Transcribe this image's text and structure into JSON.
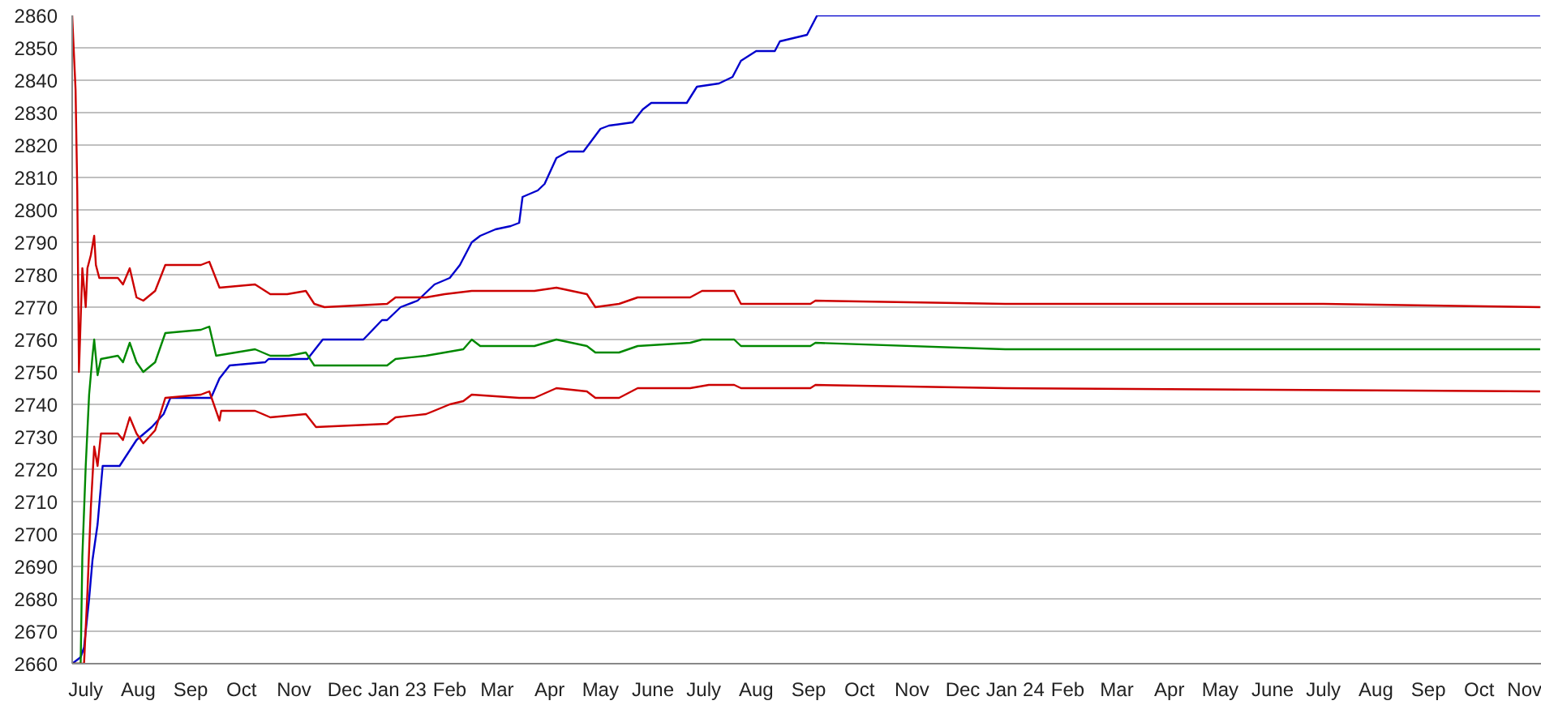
{
  "chart_data": {
    "type": "line",
    "grid": "y",
    "xlim": [
      "2022-06-23",
      "2024-11-07"
    ],
    "ylim": [
      2660,
      2860
    ],
    "yticks": [
      2660,
      2670,
      2680,
      2690,
      2700,
      2710,
      2720,
      2730,
      2740,
      2750,
      2760,
      2770,
      2780,
      2790,
      2800,
      2810,
      2820,
      2830,
      2840,
      2850,
      2860
    ],
    "xticks": [
      {
        "value": "2022-07-01",
        "label": "July"
      },
      {
        "value": "2022-08-01",
        "label": "Aug"
      },
      {
        "value": "2022-09-01",
        "label": "Sep"
      },
      {
        "value": "2022-10-01",
        "label": "Oct"
      },
      {
        "value": "2022-11-01",
        "label": "Nov"
      },
      {
        "value": "2022-12-01",
        "label": "Dec"
      },
      {
        "value": "2023-01-01",
        "label": "Jan 23"
      },
      {
        "value": "2023-02-01",
        "label": "Feb"
      },
      {
        "value": "2023-03-01",
        "label": "Mar"
      },
      {
        "value": "2023-04-01",
        "label": "Apr"
      },
      {
        "value": "2023-05-01",
        "label": "May"
      },
      {
        "value": "2023-06-01",
        "label": "June"
      },
      {
        "value": "2023-07-01",
        "label": "July"
      },
      {
        "value": "2023-08-01",
        "label": "Aug"
      },
      {
        "value": "2023-09-01",
        "label": "Sep"
      },
      {
        "value": "2023-10-01",
        "label": "Oct"
      },
      {
        "value": "2023-11-01",
        "label": "Nov"
      },
      {
        "value": "2023-12-01",
        "label": "Dec"
      },
      {
        "value": "2024-01-01",
        "label": "Jan 24"
      },
      {
        "value": "2024-02-01",
        "label": "Feb"
      },
      {
        "value": "2024-03-01",
        "label": "Mar"
      },
      {
        "value": "2024-04-01",
        "label": "Apr"
      },
      {
        "value": "2024-05-01",
        "label": "May"
      },
      {
        "value": "2024-06-01",
        "label": "June"
      },
      {
        "value": "2024-07-01",
        "label": "July"
      },
      {
        "value": "2024-08-01",
        "label": "Aug"
      },
      {
        "value": "2024-09-01",
        "label": "Sep"
      },
      {
        "value": "2024-10-01",
        "label": "Oct"
      },
      {
        "value": "2024-11-01",
        "label": "Nov"
      }
    ],
    "series": [
      {
        "color": "#0000cc",
        "x": [
          "2022-06-23",
          "2022-06-28",
          "2022-06-30",
          "2022-07-03",
          "2022-07-05",
          "2022-07-08",
          "2022-07-10",
          "2022-07-11",
          "2022-07-21",
          "2022-07-26",
          "2022-07-31",
          "2022-08-09",
          "2022-08-16",
          "2022-08-20",
          "2022-09-13",
          "2022-09-18",
          "2022-09-24",
          "2022-10-15",
          "2022-10-17",
          "2022-11-09",
          "2022-11-18",
          "2022-12-12",
          "2022-12-23",
          "2022-12-26",
          "2023-01-03",
          "2023-01-13",
          "2023-01-23",
          "2023-02-01",
          "2023-02-07",
          "2023-02-14",
          "2023-02-19",
          "2023-02-28",
          "2023-03-09",
          "2023-03-14",
          "2023-03-16",
          "2023-03-25",
          "2023-03-29",
          "2023-04-05",
          "2023-04-12",
          "2023-04-21",
          "2023-05-01",
          "2023-05-06",
          "2023-05-20",
          "2023-05-26",
          "2023-05-31",
          "2023-06-21",
          "2023-06-27",
          "2023-07-10",
          "2023-07-18",
          "2023-07-23",
          "2023-08-01",
          "2023-08-12",
          "2023-08-15",
          "2023-08-31",
          "2023-09-06",
          "2024-11-06"
        ],
        "values": [
          2660,
          2662,
          2665,
          2680,
          2692,
          2703,
          2715,
          2721,
          2721,
          2725,
          2729,
          2733,
          2737,
          2742,
          2742,
          2748,
          2752,
          2753,
          2754,
          2754,
          2760,
          2760,
          2766,
          2766,
          2770,
          2772,
          2777,
          2779,
          2783,
          2790,
          2792,
          2794,
          2795,
          2796,
          2804,
          2806,
          2808,
          2816,
          2818,
          2818,
          2825,
          2826,
          2827,
          2831,
          2833,
          2833,
          2838,
          2839,
          2841,
          2846,
          2849,
          2849,
          2852,
          2854,
          2860,
          2860
        ]
      },
      {
        "color": "#cc0000",
        "x": [
          "2022-06-23",
          "2022-06-25",
          "2022-06-26",
          "2022-06-27",
          "2022-06-29",
          "2022-07-01",
          "2022-07-02",
          "2022-07-04",
          "2022-07-06",
          "2022-07-07",
          "2022-07-09",
          "2022-07-20",
          "2022-07-23",
          "2022-07-27",
          "2022-07-31",
          "2022-08-04",
          "2022-08-11",
          "2022-08-17",
          "2022-09-07",
          "2022-09-12",
          "2022-09-18",
          "2022-10-09",
          "2022-10-18",
          "2022-10-28",
          "2022-11-08",
          "2022-11-13",
          "2022-11-19",
          "2022-12-26",
          "2022-12-31",
          "2023-01-18",
          "2023-01-29",
          "2023-02-14",
          "2023-03-14",
          "2023-03-23",
          "2023-04-05",
          "2023-04-23",
          "2023-04-28",
          "2023-05-12",
          "2023-05-23",
          "2023-06-23",
          "2023-06-30",
          "2023-07-19",
          "2023-07-23",
          "2023-09-02",
          "2023-09-05",
          "2023-12-26",
          "2024-07-01",
          "2024-11-06"
        ],
        "values": [
          2860,
          2837,
          2806,
          2750,
          2782,
          2770,
          2782,
          2786,
          2792,
          2783,
          2779,
          2779,
          2777,
          2782,
          2773,
          2772,
          2775,
          2783,
          2783,
          2784,
          2776,
          2777,
          2774,
          2774,
          2775,
          2771,
          2770,
          2771,
          2773,
          2773,
          2774,
          2775,
          2775,
          2775,
          2776,
          2774,
          2770,
          2771,
          2773,
          2773,
          2775,
          2775,
          2771,
          2771,
          2772,
          2771,
          2771,
          2770
        ]
      },
      {
        "color": "#008800",
        "x": [
          "2022-06-23",
          "2022-06-28",
          "2022-06-29",
          "2022-07-01",
          "2022-07-03",
          "2022-07-05",
          "2022-07-06",
          "2022-07-08",
          "2022-07-10",
          "2022-07-20",
          "2022-07-23",
          "2022-07-27",
          "2022-07-31",
          "2022-08-04",
          "2022-08-11",
          "2022-08-17",
          "2022-09-07",
          "2022-09-12",
          "2022-09-16",
          "2022-10-09",
          "2022-10-18",
          "2022-10-29",
          "2022-11-08",
          "2022-11-13",
          "2022-12-26",
          "2022-12-31",
          "2023-01-18",
          "2023-02-09",
          "2023-02-14",
          "2023-02-19",
          "2023-03-14",
          "2023-03-23",
          "2023-04-05",
          "2023-04-23",
          "2023-04-28",
          "2023-05-12",
          "2023-05-23",
          "2023-06-23",
          "2023-06-30",
          "2023-07-19",
          "2023-07-23",
          "2023-09-02",
          "2023-09-05",
          "2023-12-26",
          "2024-11-06"
        ],
        "values": [
          2660,
          2660,
          2693,
          2721,
          2743,
          2755,
          2760,
          2749,
          2754,
          2755,
          2753,
          2759,
          2753,
          2750,
          2753,
          2762,
          2763,
          2764,
          2755,
          2757,
          2755,
          2755,
          2756,
          2752,
          2752,
          2754,
          2755,
          2757,
          2760,
          2758,
          2758,
          2758,
          2760,
          2758,
          2756,
          2756,
          2758,
          2759,
          2760,
          2760,
          2758,
          2758,
          2759,
          2757,
          2757
        ]
      },
      {
        "color": "#cc0000",
        "x": [
          "2022-06-23",
          "2022-06-30",
          "2022-07-02",
          "2022-07-04",
          "2022-07-06",
          "2022-07-08",
          "2022-07-10",
          "2022-07-20",
          "2022-07-23",
          "2022-07-27",
          "2022-07-31",
          "2022-08-04",
          "2022-08-11",
          "2022-08-17",
          "2022-09-07",
          "2022-09-12",
          "2022-09-18",
          "2022-09-19",
          "2022-10-09",
          "2022-10-18",
          "2022-11-08",
          "2022-11-14",
          "2022-12-26",
          "2022-12-31",
          "2023-01-18",
          "2023-02-01",
          "2023-02-09",
          "2023-02-14",
          "2023-03-14",
          "2023-03-23",
          "2023-04-05",
          "2023-04-23",
          "2023-04-28",
          "2023-05-12",
          "2023-05-23",
          "2023-06-23",
          "2023-07-04",
          "2023-07-19",
          "2023-07-23",
          "2023-09-02",
          "2023-09-05",
          "2023-12-26",
          "2024-11-06"
        ],
        "values": [
          2660,
          2660,
          2682,
          2708,
          2727,
          2721,
          2731,
          2731,
          2729,
          2736,
          2731,
          2728,
          2732,
          2742,
          2743,
          2744,
          2735,
          2738,
          2738,
          2736,
          2737,
          2733,
          2734,
          2736,
          2737,
          2740,
          2741,
          2743,
          2742,
          2742,
          2745,
          2744,
          2742,
          2742,
          2745,
          2745,
          2746,
          2746,
          2745,
          2745,
          2746,
          2745,
          2744
        ]
      }
    ]
  }
}
